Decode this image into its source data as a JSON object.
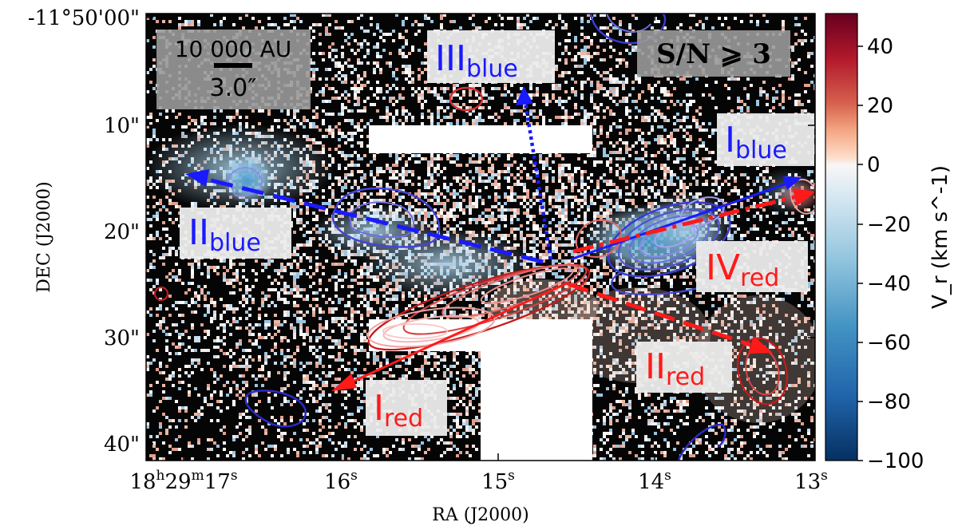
{
  "figure": {
    "xlabel": "RA (J2000)",
    "ylabel": "DEC (J2000)",
    "colorbar_label": "V_r (km s^-1)",
    "colorbar_ticks": [
      "40",
      "20",
      "0",
      "−20",
      "−40",
      "−60",
      "−80",
      "−100"
    ],
    "x_ticks": [
      {
        "main": "18",
        "sup1": "h",
        "mid": "29",
        "sup2": "m",
        "end": "17",
        "sup3": "s"
      },
      {
        "main": "16",
        "sup1": "s"
      },
      {
        "main": "15",
        "sup1": "s"
      },
      {
        "main": "14",
        "sup1": "s"
      },
      {
        "main": "13",
        "sup1": "s"
      }
    ],
    "y_ticks": [
      "-11°50'00\"",
      "10\"",
      "20\"",
      "30\"",
      "40\""
    ],
    "scalebar": {
      "length": "10 000 AU",
      "angle": "3.0″"
    },
    "snr_label": "S/N ⩾ 3",
    "outflows": [
      {
        "id": "I_blue",
        "main": "I",
        "sub": "blue",
        "color": "#1a1aff"
      },
      {
        "id": "II_blue",
        "main": "II",
        "sub": "blue",
        "color": "#1a1aff"
      },
      {
        "id": "III_blue",
        "main": "III",
        "sub": "blue",
        "color": "#1a1aff"
      },
      {
        "id": "I_red",
        "main": "I",
        "sub": "red",
        "color": "#ff1a1a"
      },
      {
        "id": "II_red",
        "main": "II",
        "sub": "red",
        "color": "#ff1a1a"
      },
      {
        "id": "IV_red",
        "main": "IV",
        "sub": "red",
        "color": "#ff1a1a"
      }
    ],
    "colors": {
      "blue": "#1a1aff",
      "red": "#ff1a1a",
      "bg": "#000000"
    }
  }
}
